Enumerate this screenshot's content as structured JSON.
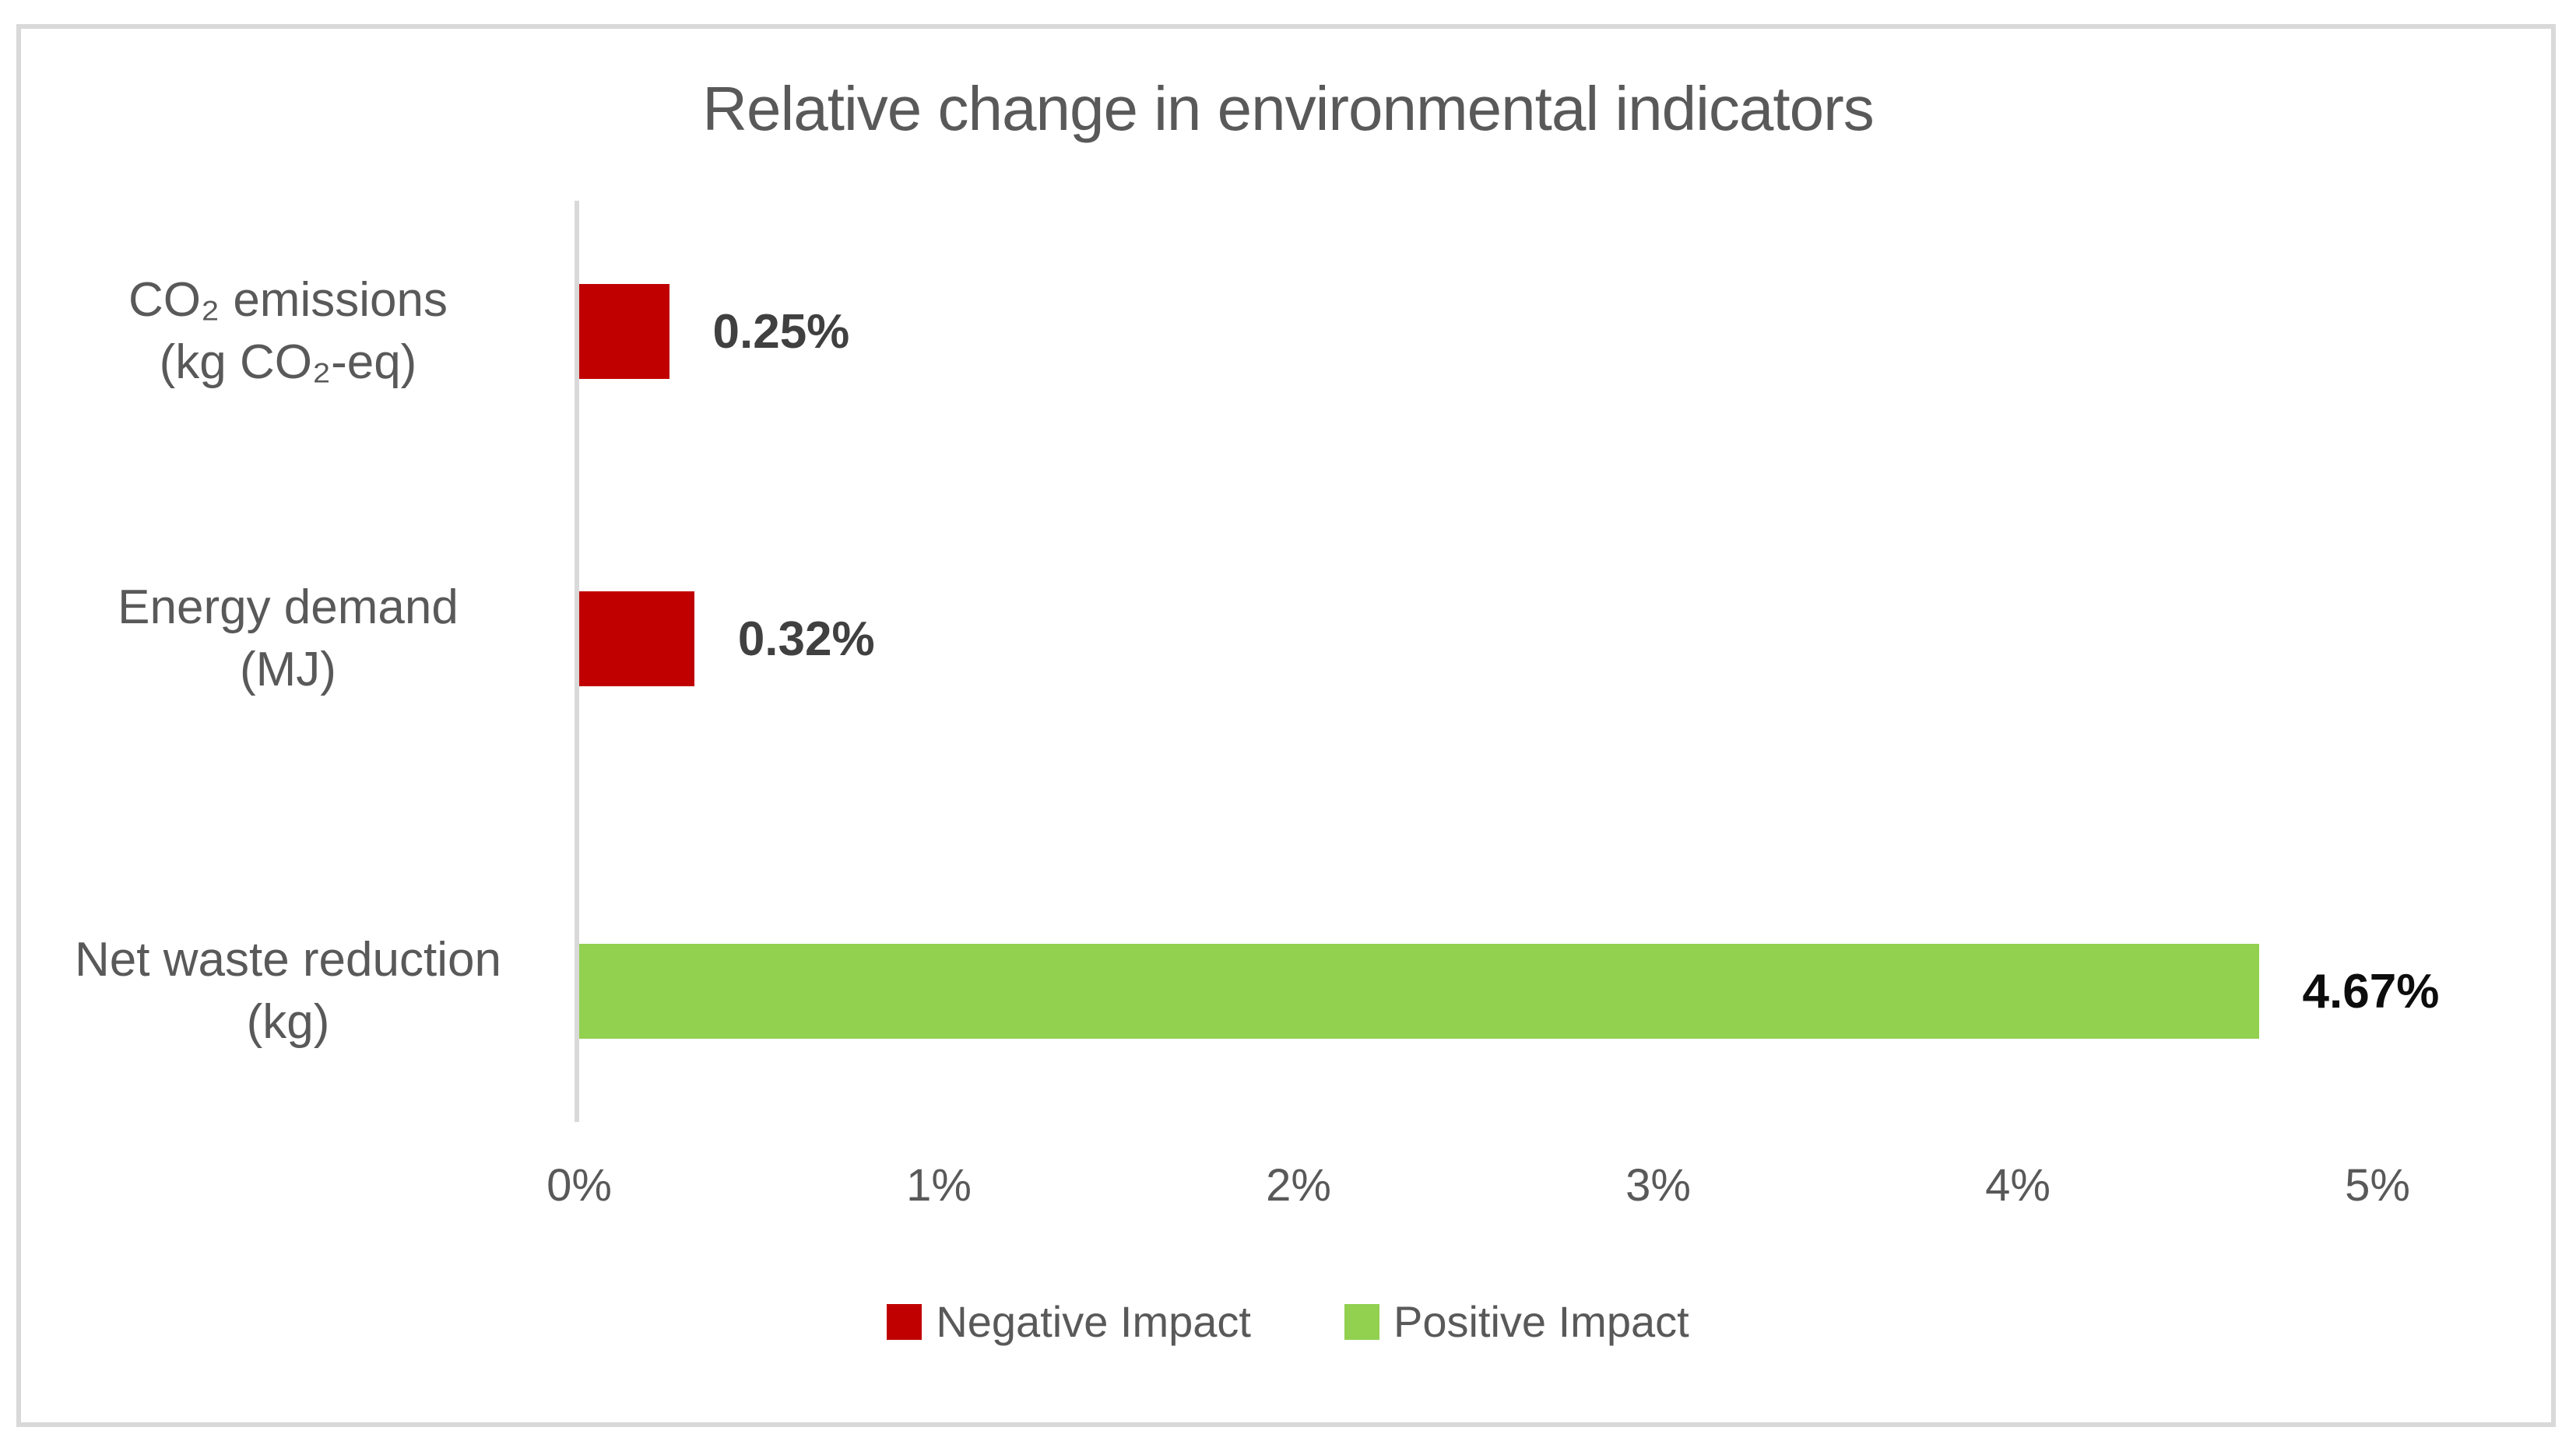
{
  "chart_data": {
    "type": "bar",
    "orientation": "horizontal",
    "title": "Relative change in environmental indicators",
    "categories": [
      "CO₂ emissions (kg CO₂-eq)",
      "Energy demand (MJ)",
      "Net waste reduction (kg)"
    ],
    "series": [
      {
        "name": "Negative Impact",
        "color": "#C00000",
        "values": [
          0.25,
          0.32,
          null
        ]
      },
      {
        "name": "Positive Impact",
        "color": "#92D050",
        "values": [
          null,
          null,
          4.67
        ]
      }
    ],
    "bars": [
      {
        "category_line1": "CO₂ emissions",
        "category_line2": "(kg CO₂-eq)",
        "value": 0.25,
        "value_label": "0.25%",
        "series": "Negative Impact",
        "color": "#C00000",
        "label_color": "#404040"
      },
      {
        "category_line1": "Energy demand",
        "category_line2": "(MJ)",
        "value": 0.32,
        "value_label": "0.32%",
        "series": "Negative Impact",
        "color": "#C00000",
        "label_color": "#404040"
      },
      {
        "category_line1": "Net waste reduction",
        "category_line2": "(kg)",
        "value": 4.67,
        "value_label": "4.67%",
        "series": "Positive Impact",
        "color": "#92D050",
        "label_color": "#0d0d0d"
      }
    ],
    "x_axis": {
      "min": 0,
      "max": 5,
      "unit": "%",
      "ticks": [
        "0%",
        "1%",
        "2%",
        "3%",
        "4%",
        "5%"
      ]
    },
    "xlabel": "",
    "ylabel": "",
    "grid": false,
    "legend_position": "bottom",
    "colors": {
      "axis_line": "#D9D9D9",
      "chart_border": "#D9D9D9",
      "text_gray": "#595959"
    }
  }
}
